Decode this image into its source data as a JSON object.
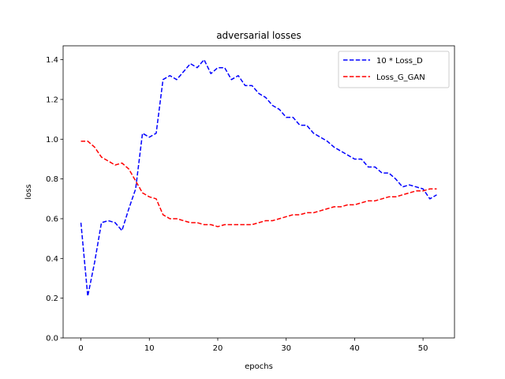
{
  "chart_data": {
    "type": "line",
    "title": "adversarial losses",
    "xlabel": "epochs",
    "ylabel": "loss",
    "xlim": [
      -2.6,
      54.6
    ],
    "ylim": [
      0.0,
      1.47
    ],
    "xticks": [
      0,
      10,
      20,
      30,
      40,
      50
    ],
    "yticks": [
      0.0,
      0.2,
      0.4,
      0.6,
      0.8,
      1.0,
      1.2,
      1.4
    ],
    "grid": false,
    "legend_position": "top-right",
    "series": [
      {
        "name": "10 * Loss_D",
        "color": "#0000ff",
        "style": "dashed",
        "x": [
          0,
          1,
          2,
          3,
          4,
          5,
          6,
          7,
          8,
          9,
          10,
          11,
          12,
          13,
          14,
          15,
          16,
          17,
          18,
          19,
          20,
          21,
          22,
          23,
          24,
          25,
          26,
          27,
          28,
          29,
          30,
          31,
          32,
          33,
          34,
          35,
          36,
          37,
          38,
          39,
          40,
          41,
          42,
          43,
          44,
          45,
          46,
          47,
          48,
          49,
          50,
          51,
          52
        ],
        "y": [
          0.58,
          0.21,
          0.38,
          0.58,
          0.59,
          0.58,
          0.54,
          0.65,
          0.75,
          1.03,
          1.01,
          1.03,
          1.3,
          1.32,
          1.3,
          1.34,
          1.38,
          1.36,
          1.4,
          1.33,
          1.36,
          1.36,
          1.3,
          1.32,
          1.27,
          1.27,
          1.23,
          1.21,
          1.17,
          1.15,
          1.11,
          1.11,
          1.07,
          1.07,
          1.03,
          1.01,
          0.99,
          0.96,
          0.94,
          0.92,
          0.9,
          0.9,
          0.86,
          0.86,
          0.83,
          0.83,
          0.8,
          0.76,
          0.77,
          0.76,
          0.75,
          0.7,
          0.72
        ]
      },
      {
        "name": "Loss_G_GAN",
        "color": "#ff0000",
        "style": "dashed",
        "x": [
          0,
          1,
          2,
          3,
          4,
          5,
          6,
          7,
          8,
          9,
          10,
          11,
          12,
          13,
          14,
          15,
          16,
          17,
          18,
          19,
          20,
          21,
          22,
          23,
          24,
          25,
          26,
          27,
          28,
          29,
          30,
          31,
          32,
          33,
          34,
          35,
          36,
          37,
          38,
          39,
          40,
          41,
          42,
          43,
          44,
          45,
          46,
          47,
          48,
          49,
          50,
          51,
          52
        ],
        "y": [
          0.99,
          0.99,
          0.96,
          0.91,
          0.89,
          0.87,
          0.88,
          0.85,
          0.79,
          0.73,
          0.71,
          0.7,
          0.62,
          0.6,
          0.6,
          0.59,
          0.58,
          0.58,
          0.57,
          0.57,
          0.56,
          0.57,
          0.57,
          0.57,
          0.57,
          0.57,
          0.58,
          0.59,
          0.59,
          0.6,
          0.61,
          0.62,
          0.62,
          0.63,
          0.63,
          0.64,
          0.65,
          0.66,
          0.66,
          0.67,
          0.67,
          0.68,
          0.69,
          0.69,
          0.7,
          0.71,
          0.71,
          0.72,
          0.73,
          0.74,
          0.74,
          0.75,
          0.75
        ]
      }
    ]
  }
}
